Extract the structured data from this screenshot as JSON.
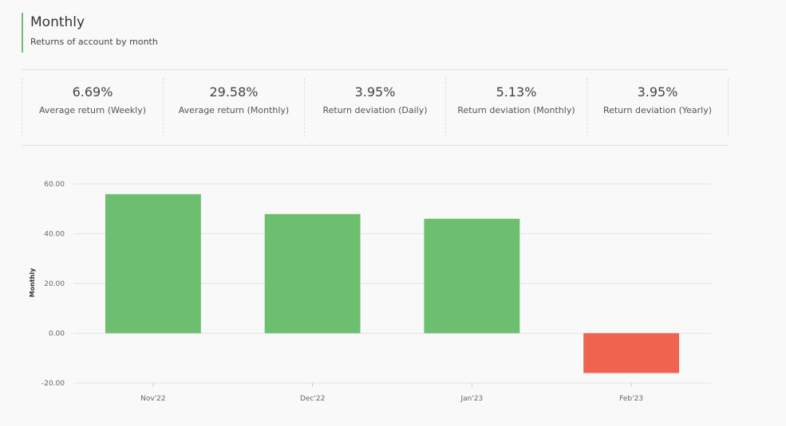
{
  "header": {
    "title": "Monthly",
    "subtitle": "Returns of account by month"
  },
  "stats": [
    {
      "value": "6.69%",
      "label": "Average return (Weekly)"
    },
    {
      "value": "29.58%",
      "label": "Average return (Monthly)"
    },
    {
      "value": "3.95%",
      "label": "Return deviation (Daily)"
    },
    {
      "value": "5.13%",
      "label": "Return deviation (Monthly)"
    },
    {
      "value": "3.95%",
      "label": "Return deviation (Yearly)"
    }
  ],
  "chart_data": {
    "type": "bar",
    "title": "",
    "xlabel": "",
    "ylabel": "Monthly",
    "categories": [
      "Nov'22",
      "Dec'22",
      "Jan'23",
      "Feb'23"
    ],
    "values": [
      55.9,
      47.9,
      46.0,
      -16.0
    ],
    "ylim": [
      -20,
      60
    ],
    "yticks": [
      "60.00",
      "40.00",
      "20.00",
      "0.00",
      "-20.00"
    ],
    "grid": true,
    "colors": {
      "positive": "#6cbf6f",
      "negative": "#f0634f"
    }
  }
}
